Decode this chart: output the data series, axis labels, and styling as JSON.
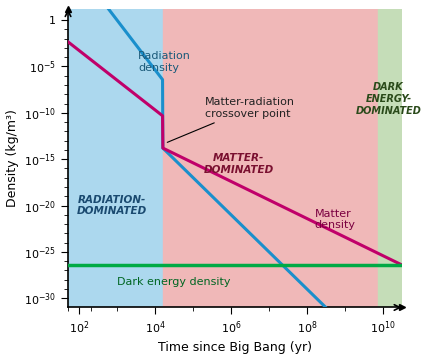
{
  "xlabel": "Time since Big Bang (yr)",
  "ylabel": "Density (kg/m³)",
  "xlim_log": [
    1.7,
    10.5
  ],
  "ylim_log": [
    -31,
    1.2
  ],
  "radiation_color": "#1a8fcc",
  "matter_color": "#c0006a",
  "dark_energy_color": "#00aa44",
  "region1_color": "#acd8ee",
  "region2_color": "#f0b8b8",
  "region3_color": "#c5ddb8",
  "region1_label": "RADIATION-\nDOMINATED",
  "region2_label": "MATTER-\nDOMINATED",
  "region3_label": "DARK\nENERGY-\nDOMINATED",
  "region1_xmax_log": 4.2,
  "region2_xmax_log": 9.87,
  "dark_energy_log_y": -26.4,
  "crossover_log_x": 4.2,
  "crossover_log_y": -13.8,
  "rad_slope1": -5.35,
  "rad_slope2": -4.0,
  "mat_slope1": -3.2,
  "mat_slope2": -2.0,
  "rad_entry_log_x": 2.9,
  "rad_entry_log_y": 0.5,
  "mat_entry_log_x": 1.75,
  "mat_entry_log_y": -2.5,
  "annotation_radiation": "Radiation\ndensity",
  "annotation_matter": "Matter\ndensity",
  "annotation_dark_energy": "Dark energy density",
  "annotation_crossover": "Matter-radiation\ncrossover point",
  "tick_fontsize": 8,
  "label_fontsize": 9,
  "annotation_fontsize": 8,
  "region_label_fontsize": 7.5
}
